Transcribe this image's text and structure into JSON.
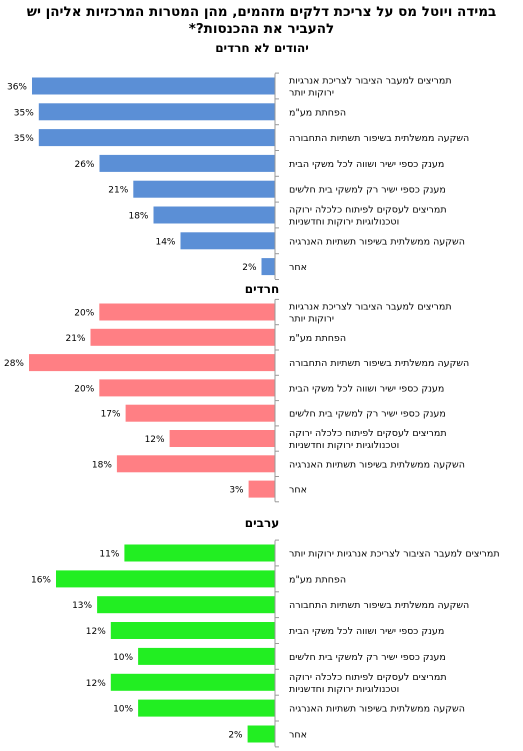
{
  "title": "במידה ויוטל מס על צריכת דלקים מזהמים, מהן המטרות המרכזיות אליהן יש להעביר את ההכנסות?*",
  "chart_data": [
    {
      "type": "bar",
      "orientation": "horizontal",
      "title": "יהודים לא חרדים",
      "color": "#5B8FD6",
      "categories": [
        [
          "תמריצים למעבר הציבור לצריכת אנרגיות",
          "ירוקות יותר"
        ],
        [
          "הפחתת מע\"מ"
        ],
        [
          "השקעה ממשלתית בשיפור תשתיות התחבורה"
        ],
        [
          "מענק כספי ישיר ושווה לכל משקי הבית"
        ],
        [
          "מענק כספי ישיר רק למשקי בית חלשים"
        ],
        [
          "תמריצים לעסקים לפיתוח כלכלה ירוקה",
          "וטכנולוגיות ירוקות וחדשניות"
        ],
        [
          "השקעה ממשלתית בשיפור תשתיות האנרגיה"
        ],
        [
          "אחר"
        ]
      ],
      "values": [
        36,
        35,
        35,
        26,
        21,
        18,
        14,
        2
      ],
      "value_labels": [
        "36%",
        "35%",
        "35%",
        "26%",
        "21%",
        "18%",
        "14%",
        "2%"
      ],
      "xlim": [
        0,
        36
      ]
    },
    {
      "type": "bar",
      "orientation": "horizontal",
      "title": "חרדים",
      "color": "#FF7F84",
      "categories": [
        [
          "תמריצים למעבר הציבור לצריכת אנרגיות",
          "ירוקות יותר"
        ],
        [
          "הפחתת מע\"מ"
        ],
        [
          "השקעה ממשלתית בשיפור תשתיות התחבורה"
        ],
        [
          "מענק כספי ישיר ושווה לכל משקי הבית"
        ],
        [
          "מענק כספי ישיר רק למשקי בית חלשים"
        ],
        [
          "תמריצים לעסקים לפיתוח כלכלה ירוקה",
          "וטכנולוגיות ירוקות וחדשניות"
        ],
        [
          "השקעה ממשלתית בשיפור תשתיות האנרגיה"
        ],
        [
          "אחר"
        ]
      ],
      "values": [
        20,
        21,
        28,
        20,
        17,
        12,
        18,
        3
      ],
      "value_labels": [
        "20%",
        "21%",
        "28%",
        "20%",
        "17%",
        "12%",
        "18%",
        "3%"
      ],
      "xlim": [
        0,
        28
      ]
    },
    {
      "type": "bar",
      "orientation": "horizontal",
      "title": "ערבים",
      "color": "#22EE22",
      "categories": [
        [
          "תמריצים למעבר הציבור לצריכת אנרגיות ירוקות יותר"
        ],
        [
          "הפחתת מע\"מ"
        ],
        [
          "השקעה ממשלתית בשיפור תשתיות התחבורה"
        ],
        [
          "מענק כספי ישיר ושווה לכל משקי הבית"
        ],
        [
          "מענק כספי ישיר רק למשקי בית חלשים"
        ],
        [
          "תמריצים לעסקים לפיתוח כלכלה ירוקה",
          "וטכנולוגיות ירוקות וחדשניות"
        ],
        [
          "השקעה ממשלתית בשיפור תשתיות האנרגיה"
        ],
        [
          "אחר"
        ]
      ],
      "values": [
        11,
        16,
        13,
        12,
        10,
        12,
        10,
        2
      ],
      "value_labels": [
        "11%",
        "16%",
        "13%",
        "12%",
        "10%",
        "12%",
        "10%",
        "2%"
      ],
      "xlim": [
        0,
        16
      ]
    }
  ]
}
